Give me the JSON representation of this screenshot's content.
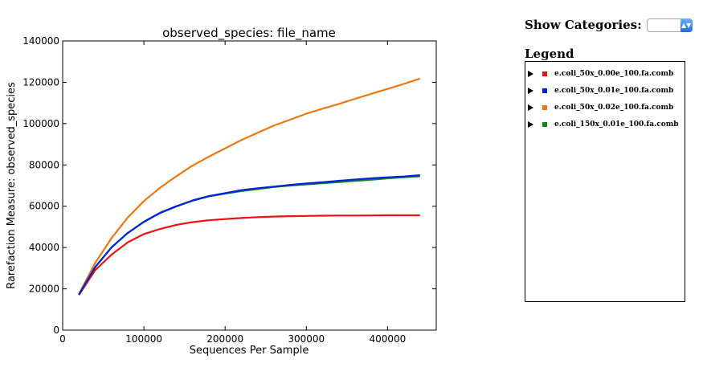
{
  "chart_data": {
    "type": "line",
    "title": "observed_species: file_name",
    "xlabel": "Sequences Per Sample",
    "ylabel": "Rarefaction Measure: observed_species",
    "xlim": [
      0,
      460000
    ],
    "ylim": [
      0,
      140000
    ],
    "xticks": [
      0,
      100000,
      200000,
      300000,
      400000
    ],
    "yticks": [
      0,
      20000,
      40000,
      60000,
      80000,
      100000,
      120000,
      140000
    ],
    "grid": false,
    "x": [
      20000,
      40000,
      60000,
      80000,
      100000,
      120000,
      140000,
      160000,
      180000,
      200000,
      220000,
      240000,
      260000,
      280000,
      300000,
      320000,
      340000,
      360000,
      380000,
      400000,
      420000,
      440000
    ],
    "series": [
      {
        "name": "e.coli_50x_0.00e_100.fa.comb",
        "color": "#ee1111",
        "values": [
          17000,
          29000,
          36500,
          42500,
          46500,
          49000,
          51000,
          52300,
          53200,
          53800,
          54300,
          54700,
          55000,
          55200,
          55300,
          55400,
          55500,
          55500,
          55550,
          55600,
          55600,
          55600
        ]
      },
      {
        "name": "e.coli_50x_0.01e_100.fa.comb",
        "color": "#0022dd",
        "values": [
          17200,
          30500,
          40000,
          47000,
          52500,
          56800,
          60000,
          62800,
          64900,
          66300,
          67800,
          68700,
          69500,
          70300,
          71000,
          71600,
          72300,
          72900,
          73500,
          74000,
          74400,
          75000
        ]
      },
      {
        "name": "e.coli_50x_0.02e_100.fa.comb",
        "color": "#ee7711",
        "values": [
          17500,
          32500,
          44500,
          54500,
          62500,
          69000,
          74500,
          79700,
          84000,
          88000,
          92000,
          95600,
          99000,
          101900,
          104800,
          107200,
          109500,
          112000,
          114400,
          116800,
          119200,
          121800
        ]
      },
      {
        "name": "e.coli_150x_0.01e_100.fa.comb",
        "color": "#118811",
        "values": [
          17200,
          30500,
          40000,
          47000,
          52400,
          56700,
          59900,
          62700,
          64800,
          66100,
          67300,
          68300,
          69300,
          70000,
          70600,
          71100,
          71700,
          72300,
          72800,
          73500,
          74000,
          74500
        ]
      }
    ]
  },
  "categories": {
    "label": "Show Categories:"
  },
  "legend": {
    "title": "Legend"
  }
}
